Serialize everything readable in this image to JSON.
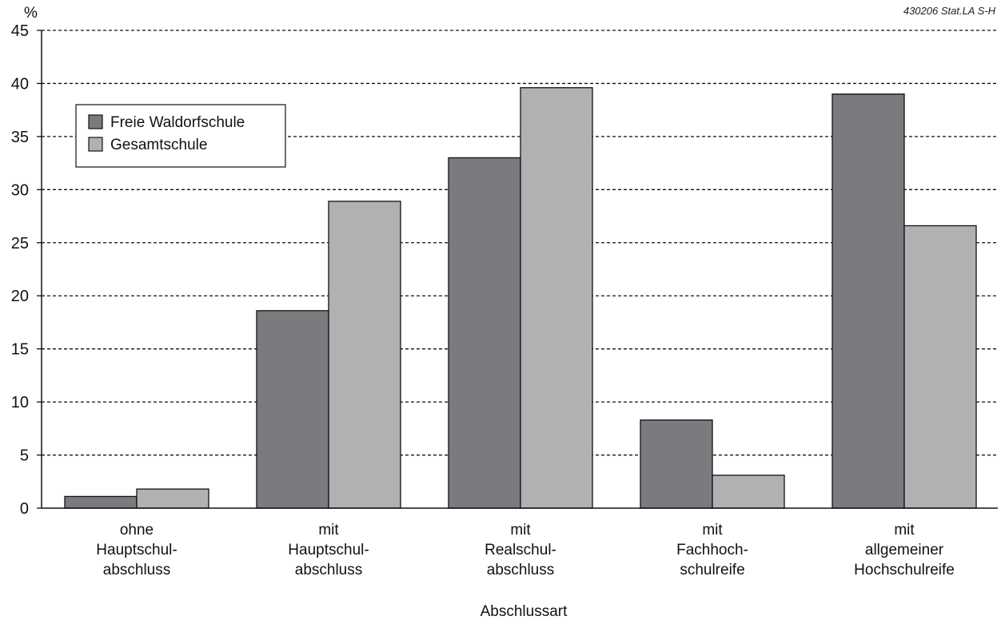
{
  "chart_data": {
    "type": "bar",
    "title": "",
    "source_note": "430206 Stat.LA S-H",
    "ylabel": "%",
    "xlabel": "Abschlussart",
    "ylim": [
      0,
      45
    ],
    "yticks": [
      0,
      5,
      10,
      15,
      20,
      25,
      30,
      35,
      40,
      45
    ],
    "grid": true,
    "legend_position": "top-left",
    "categories": [
      [
        "ohne",
        "Hauptschul-",
        "abschluss"
      ],
      [
        "mit",
        "Hauptschul-",
        "abschluss"
      ],
      [
        "mit",
        "Realschul-",
        "abschluss"
      ],
      [
        "mit",
        "Fachhoch-",
        "schulreife"
      ],
      [
        "mit",
        "allgemeiner",
        "Hochschulreife"
      ]
    ],
    "series": [
      {
        "name": "Freie Waldorfschule",
        "color": "#7a7b7f",
        "values": [
          1.1,
          18.6,
          33.0,
          8.3,
          39.0
        ]
      },
      {
        "name": "Gesamtschule",
        "color": "#b0b1b3",
        "values": [
          1.8,
          28.9,
          39.6,
          3.1,
          26.6
        ]
      }
    ]
  }
}
